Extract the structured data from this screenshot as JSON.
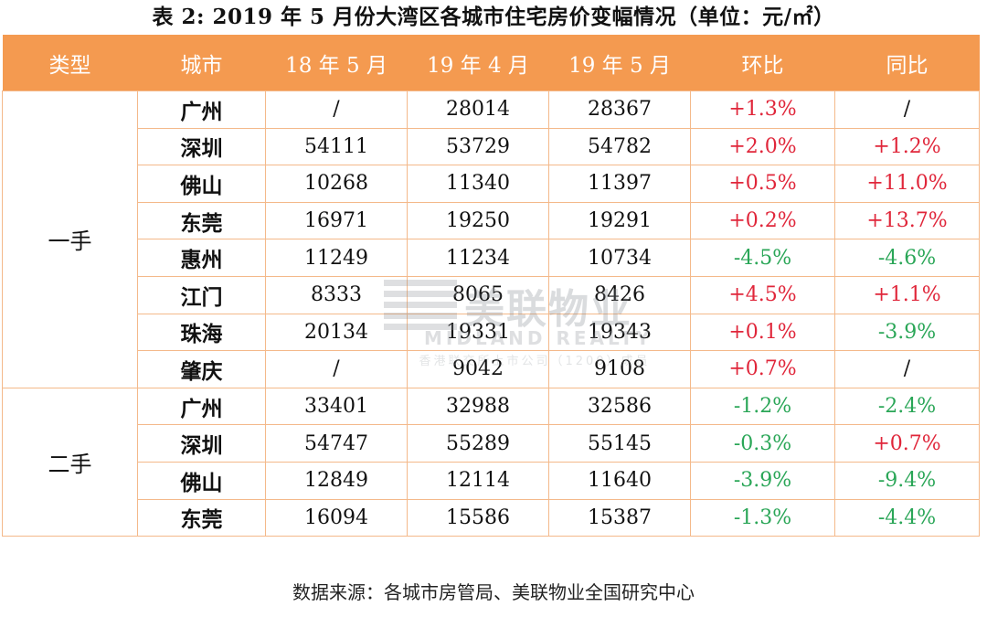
{
  "title": "表 2: 2019 年 5 月份大湾区各城市住宅房价变幅情况（单位：元/㎡）",
  "headers": [
    "类型",
    "城市",
    "18 年 5 月",
    "19 年 4 月",
    "19 年 5 月",
    "环比",
    "同比"
  ],
  "groups": [
    {
      "type": "一手",
      "rows": [
        {
          "city": "广州",
          "m1805": "/",
          "m1904": "28014",
          "m1905": "28367",
          "mom": "+1.3%",
          "yoy": "/"
        },
        {
          "city": "深圳",
          "m1805": "54111",
          "m1904": "53729",
          "m1905": "54782",
          "mom": "+2.0%",
          "yoy": "+1.2%"
        },
        {
          "city": "佛山",
          "m1805": "10268",
          "m1904": "11340",
          "m1905": "11397",
          "mom": "+0.5%",
          "yoy": "+11.0%"
        },
        {
          "city": "东莞",
          "m1805": "16971",
          "m1904": "19250",
          "m1905": "19291",
          "mom": "+0.2%",
          "yoy": "+13.7%"
        },
        {
          "city": "惠州",
          "m1805": "11249",
          "m1904": "11234",
          "m1905": "10734",
          "mom": "-4.5%",
          "yoy": "-4.6%"
        },
        {
          "city": "江门",
          "m1805": "8333",
          "m1904": "8065",
          "m1905": "8426",
          "mom": "+4.5%",
          "yoy": "+1.1%"
        },
        {
          "city": "珠海",
          "m1805": "20134",
          "m1904": "19331",
          "m1905": "19343",
          "mom": "+0.1%",
          "yoy": "-3.9%"
        },
        {
          "city": "肇庆",
          "m1805": "/",
          "m1904": "9042",
          "m1905": "9108",
          "mom": "+0.7%",
          "yoy": "/"
        }
      ]
    },
    {
      "type": "二手",
      "rows": [
        {
          "city": "广州",
          "m1805": "33401",
          "m1904": "32988",
          "m1905": "32586",
          "mom": "-1.2%",
          "yoy": "-2.4%"
        },
        {
          "city": "深圳",
          "m1805": "54747",
          "m1904": "55289",
          "m1905": "55145",
          "mom": "-0.3%",
          "yoy": "+0.7%"
        },
        {
          "city": "佛山",
          "m1805": "12849",
          "m1904": "12114",
          "m1905": "11640",
          "mom": "-3.9%",
          "yoy": "-9.4%"
        },
        {
          "city": "东莞",
          "m1805": "16094",
          "m1904": "15586",
          "m1905": "15387",
          "mom": "-1.3%",
          "yoy": "-4.4%"
        }
      ]
    }
  ],
  "watermark": {
    "name": "美联物业",
    "english": "MIDLAND REALTY",
    "sub": "香港联交所上市公司（1200）成员"
  },
  "source": "数据来源：各城市房管局、美联物业全国研究中心",
  "colors": {
    "header_bg": "#f49a50",
    "positive": "#e0263a",
    "negative": "#2aa657",
    "border": "#f4b98a"
  }
}
